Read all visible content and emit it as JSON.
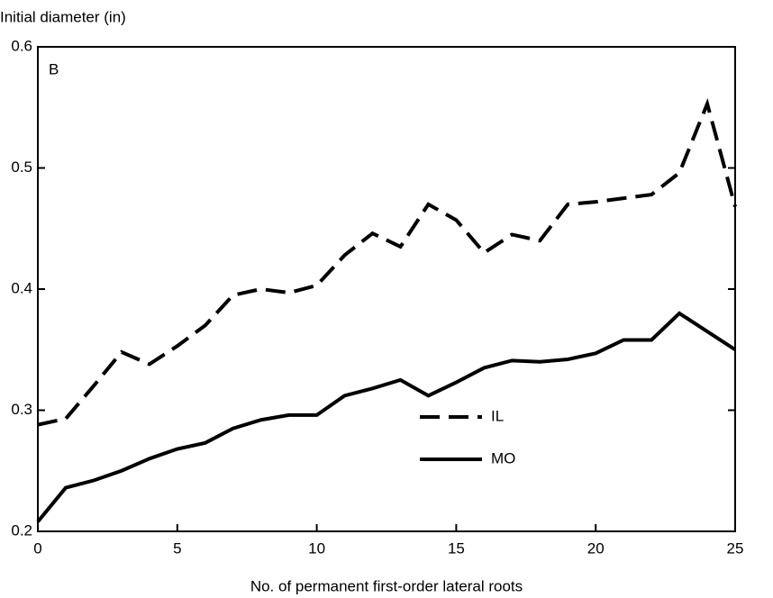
{
  "chart_data": {
    "type": "line",
    "y_label": "Initial diameter (in)",
    "x_label": "No. of permanent first-order lateral roots",
    "annotation": "B",
    "x": [
      0,
      1,
      2,
      3,
      4,
      5,
      6,
      7,
      8,
      9,
      10,
      11,
      12,
      13,
      14,
      15,
      16,
      17,
      18,
      19,
      20,
      21,
      22,
      23,
      24,
      25
    ],
    "series": [
      {
        "name": "IL",
        "color": "#000000",
        "dash": true,
        "values": [
          0.288,
          0.293,
          0.32,
          0.348,
          0.338,
          0.353,
          0.37,
          0.395,
          0.4,
          0.397,
          0.403,
          0.428,
          0.446,
          0.435,
          0.47,
          0.457,
          0.43,
          0.445,
          0.44,
          0.47,
          0.472,
          0.475,
          0.478,
          0.496,
          0.553,
          0.468
        ]
      },
      {
        "name": "MO",
        "color": "#000000",
        "dash": false,
        "values": [
          0.208,
          0.236,
          0.242,
          0.25,
          0.26,
          0.268,
          0.273,
          0.285,
          0.292,
          0.296,
          0.296,
          0.312,
          0.318,
          0.325,
          0.312,
          0.323,
          0.335,
          0.341,
          0.34,
          0.342,
          0.347,
          0.358,
          0.358,
          0.38,
          0.365,
          0.35
        ]
      }
    ],
    "xlim": [
      0,
      25
    ],
    "xticks": [
      0,
      5,
      10,
      15,
      20,
      25
    ],
    "ylim": [
      0.2,
      0.6
    ],
    "yticks": [
      0.2,
      0.3,
      0.4,
      0.5,
      0.6
    ],
    "legend": "lower right",
    "grid": false
  }
}
